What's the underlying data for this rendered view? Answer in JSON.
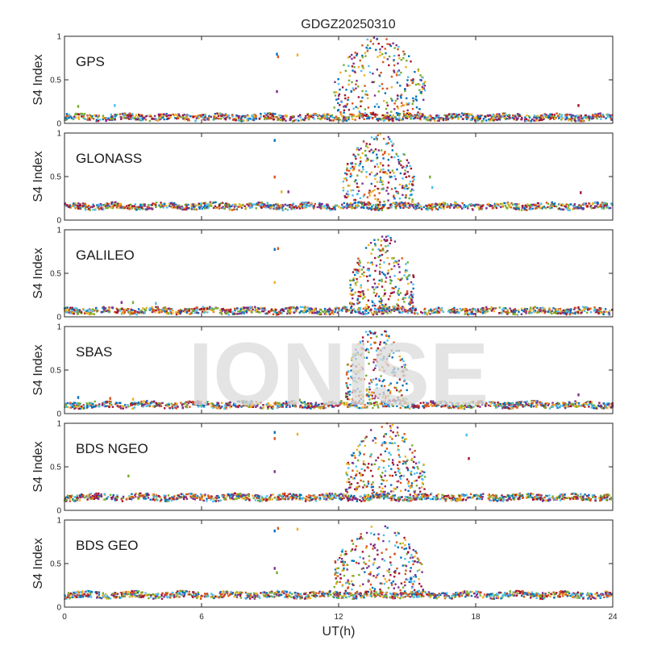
{
  "chart_data": {
    "type": "scatter",
    "title": "GDGZ20250310",
    "xlabel": "UT(h)",
    "xlim": [
      0,
      24
    ],
    "x_ticks": [
      "0",
      "6",
      "12",
      "18",
      "24"
    ],
    "ylim": [
      0,
      1
    ],
    "y_ticks": [
      "0",
      "0.5",
      "1"
    ],
    "grid": false,
    "watermark": "IONISE",
    "series_colors": [
      "#0072BD",
      "#D95319",
      "#EDB120",
      "#7E2F8E",
      "#77AC30",
      "#4DBEEE",
      "#A2142F"
    ],
    "panels": [
      {
        "name": "GPS",
        "ylabel": "S4 Index",
        "baseline": 0.07,
        "event": {
          "start": 11.8,
          "end": 15.8,
          "peak": 1.0
        },
        "isolated": [
          [
            9.3,
            0.8
          ],
          [
            9.35,
            0.77
          ],
          [
            10.2,
            0.79
          ],
          [
            9.3,
            0.37
          ],
          [
            0.6,
            0.2
          ],
          [
            2.2,
            0.21
          ],
          [
            22.5,
            0.21
          ]
        ]
      },
      {
        "name": "GLONASS",
        "ylabel": "S4 Index",
        "baseline": 0.16,
        "event": {
          "start": 12.2,
          "end": 15.3,
          "peak": 1.0
        },
        "isolated": [
          [
            9.2,
            0.92
          ],
          [
            9.2,
            0.5
          ],
          [
            9.5,
            0.33
          ],
          [
            9.8,
            0.33
          ],
          [
            16.0,
            0.5
          ],
          [
            16.1,
            0.38
          ],
          [
            22.6,
            0.32
          ]
        ]
      },
      {
        "name": "GALILEO",
        "ylabel": "S4 Index",
        "baseline": 0.07,
        "event": {
          "start": 12.5,
          "end": 15.3,
          "peak": 0.95
        },
        "isolated": [
          [
            9.2,
            0.78
          ],
          [
            9.35,
            0.79
          ],
          [
            9.2,
            0.4
          ],
          [
            2.5,
            0.17
          ],
          [
            3.0,
            0.17
          ],
          [
            4.0,
            0.16
          ],
          [
            22.5,
            0.11
          ]
        ]
      },
      {
        "name": "SBAS",
        "ylabel": "S4 Index",
        "baseline": 0.1,
        "event": {
          "start": 12.3,
          "end": 15.0,
          "peak": 1.0
        },
        "isolated": [
          [
            0.6,
            0.19
          ],
          [
            2.0,
            0.18
          ],
          [
            3.0,
            0.17
          ],
          [
            22.5,
            0.22
          ],
          [
            10.3,
            0.16
          ]
        ]
      },
      {
        "name": "BDS NGEO",
        "ylabel": "S4 Index",
        "baseline": 0.15,
        "event": {
          "start": 12.3,
          "end": 15.8,
          "peak": 1.0
        },
        "isolated": [
          [
            9.2,
            0.9
          ],
          [
            9.2,
            0.83
          ],
          [
            10.2,
            0.88
          ],
          [
            9.2,
            0.45
          ],
          [
            2.8,
            0.4
          ],
          [
            17.6,
            0.87
          ],
          [
            17.7,
            0.6
          ],
          [
            10.3,
            0.18
          ]
        ]
      },
      {
        "name": "BDS GEO",
        "ylabel": "S4 Index",
        "baseline": 0.14,
        "event": {
          "start": 11.8,
          "end": 15.7,
          "peak": 0.95
        },
        "isolated": [
          [
            9.2,
            0.88
          ],
          [
            9.35,
            0.91
          ],
          [
            10.2,
            0.9
          ],
          [
            9.2,
            0.45
          ],
          [
            9.3,
            0.4
          ]
        ]
      }
    ]
  }
}
